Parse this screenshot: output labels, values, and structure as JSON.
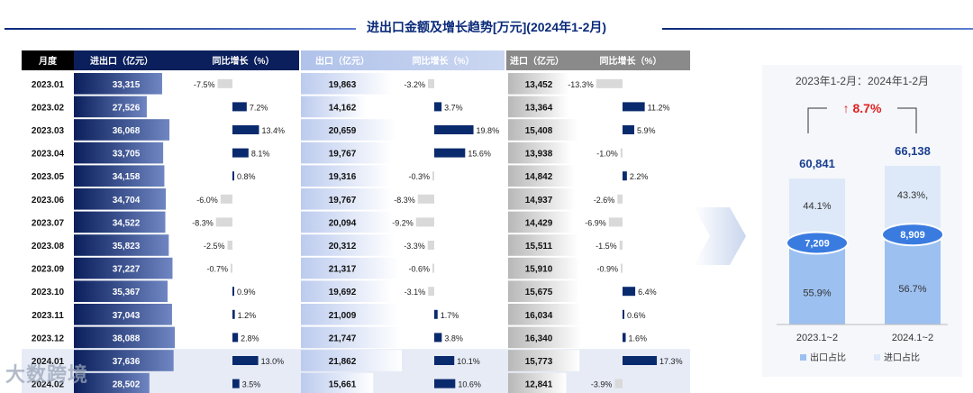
{
  "title": "进出口金额及增长趋势[万元](2024年1-2月)",
  "table": {
    "headers": {
      "month": "月度",
      "total": "进出口（亿元）",
      "total_yoy": "同比增长（%）",
      "export": "出口（亿元）",
      "export_yoy": "同比增长（%）",
      "import": "进口（亿元）",
      "import_yoy": "同比增长（%）"
    },
    "colors": {
      "total": "#0a1f5c",
      "export": "#a9bde8",
      "import": "#8a8a8a",
      "pos": "#0a2a6e",
      "neg": "#d9d9d9"
    }
  },
  "chart_data": [
    {
      "type": "table",
      "months": [
        "2023.01",
        "2023.02",
        "2023.03",
        "2023.04",
        "2023.05",
        "2023.06",
        "2023.07",
        "2023.08",
        "2023.09",
        "2023.10",
        "2023.11",
        "2023.12",
        "2024.01",
        "2024.02"
      ],
      "total_labels": [
        "33,315",
        "27,526",
        "36,068",
        "33,705",
        "34,158",
        "34,704",
        "34,522",
        "35,823",
        "37,227",
        "35,367",
        "37,043",
        "38,088",
        "37,636",
        "28,502"
      ],
      "total": [
        33315,
        27526,
        36068,
        33705,
        34158,
        34704,
        34522,
        35823,
        37227,
        35367,
        37043,
        38088,
        37636,
        28502
      ],
      "total_yoy": [
        -7.5,
        7.2,
        13.4,
        8.1,
        0.8,
        -6.0,
        -8.3,
        -2.5,
        -0.7,
        0.9,
        1.2,
        2.8,
        13.0,
        3.5
      ],
      "total_yoy_labels": [
        "-7.5%",
        "7.2%",
        "13.4%",
        "8.1%",
        "0.8%",
        "-6.0%",
        "-8.3%",
        "-2.5%",
        "-0.7%",
        "0.9%",
        "1.2%",
        "2.8%",
        "13.0%",
        "3.5%"
      ],
      "export_labels": [
        "19,863",
        "14,162",
        "20,659",
        "19,767",
        "19,316",
        "19,767",
        "20,094",
        "20,312",
        "21,317",
        "19,692",
        "21,009",
        "21,747",
        "21,862",
        "15,661"
      ],
      "export": [
        19863,
        14162,
        20659,
        19767,
        19316,
        19767,
        20094,
        20312,
        21317,
        19692,
        21009,
        21747,
        21862,
        15661
      ],
      "export_yoy": [
        -3.2,
        3.7,
        19.8,
        15.6,
        -0.3,
        -8.3,
        -9.2,
        -3.3,
        -0.6,
        -3.1,
        1.7,
        3.8,
        10.1,
        10.6
      ],
      "export_yoy_labels": [
        "-3.2%",
        "3.7%",
        "19.8%",
        "15.6%",
        "-0.3%",
        "-8.3%",
        "-9.2%",
        "-3.3%",
        "-0.6%",
        "-3.1%",
        "1.7%",
        "3.8%",
        "10.1%",
        "10.6%"
      ],
      "import_labels": [
        "13,452",
        "13,364",
        "15,408",
        "13,938",
        "14,842",
        "14,937",
        "14,429",
        "15,511",
        "15,910",
        "15,675",
        "16,034",
        "16,340",
        "15,773",
        "12,841"
      ],
      "import": [
        13452,
        13364,
        15408,
        13938,
        14842,
        14937,
        14429,
        15511,
        15910,
        15675,
        16034,
        16340,
        15773,
        12841
      ],
      "import_yoy": [
        -13.3,
        11.2,
        5.9,
        -1.0,
        2.2,
        -2.6,
        -6.9,
        -1.5,
        -0.9,
        6.4,
        0.6,
        1.6,
        17.3,
        -3.9
      ],
      "import_yoy_labels": [
        "-13.3%",
        "11.2%",
        "5.9%",
        "-1.0%",
        "2.2%",
        "-2.6%",
        "-6.9%",
        "-1.5%",
        "-0.9%",
        "6.4%",
        "0.6%",
        "1.6%",
        "17.3%",
        "-3.9%"
      ]
    },
    {
      "type": "bar",
      "subtitle": "2023年1-2月：2024年1-2月",
      "growth_label": "↑ 8.7%",
      "categories": [
        "2023.1~2",
        "2024.1~2"
      ],
      "totals": [
        60841,
        66138
      ],
      "total_labels": [
        "60,841",
        "66,138"
      ],
      "differences": [
        7209,
        8909
      ],
      "difference_labels": [
        "7,209",
        "8,909"
      ],
      "series": [
        {
          "name": "出口占比",
          "values": [
            55.9,
            56.7
          ],
          "labels": [
            "55.9%",
            "56.7%"
          ],
          "color": "#9cc0f0"
        },
        {
          "name": "进口占比",
          "values": [
            44.1,
            43.3
          ],
          "labels": [
            "44.1%",
            "43.3%,"
          ],
          "color": "#dde9f8"
        }
      ],
      "accent_color": "#3a7be0",
      "growth_color": "#e02020",
      "legend_position": "bottom"
    }
  ],
  "logo_text": "大数跨境"
}
